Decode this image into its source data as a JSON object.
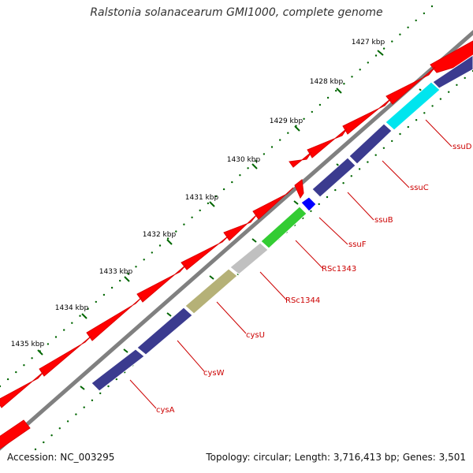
{
  "title": "Ralstonia solanacearum GMI1000, complete genome",
  "footer": {
    "accession": "Accession: NC_003295",
    "summary": "Topology: circular; Length: 3,716,413 bp; Genes: 3,501"
  },
  "colors": {
    "backbone": "#808080",
    "forward": "#ff0000",
    "reverse_default": "#3b3b8f",
    "tick": "#006600",
    "label": "#cc0000",
    "label_line": "#cc0000",
    "ssuD": "#00e5ee",
    "ssuF": "#0000ff",
    "RSc1343": "#33cc33",
    "RSc1344": "#c0c0c0",
    "cysU": "#b5b177"
  },
  "scale": {
    "ticks": [
      {
        "label": "1427 kbp"
      },
      {
        "label": "1428 kbp"
      },
      {
        "label": "1429 kbp"
      },
      {
        "label": "1430 kbp"
      },
      {
        "label": "1431 kbp"
      },
      {
        "label": "1432 kbp"
      },
      {
        "label": "1433 kbp"
      },
      {
        "label": "1434 kbp"
      },
      {
        "label": "1435 kbp"
      }
    ]
  },
  "genes": [
    {
      "name": "ssuD",
      "color_key": "ssuD"
    },
    {
      "name": "ssuC",
      "color_key": "reverse_default"
    },
    {
      "name": "ssuB",
      "color_key": "reverse_default"
    },
    {
      "name": "ssuF",
      "color_key": "ssuF"
    },
    {
      "name": "RSc1343",
      "color_key": "RSc1343"
    },
    {
      "name": "RSc1344",
      "color_key": "RSc1344"
    },
    {
      "name": "cysU",
      "color_key": "cysU"
    },
    {
      "name": "cysW",
      "color_key": "reverse_default"
    },
    {
      "name": "cysA",
      "color_key": "reverse_default"
    }
  ]
}
